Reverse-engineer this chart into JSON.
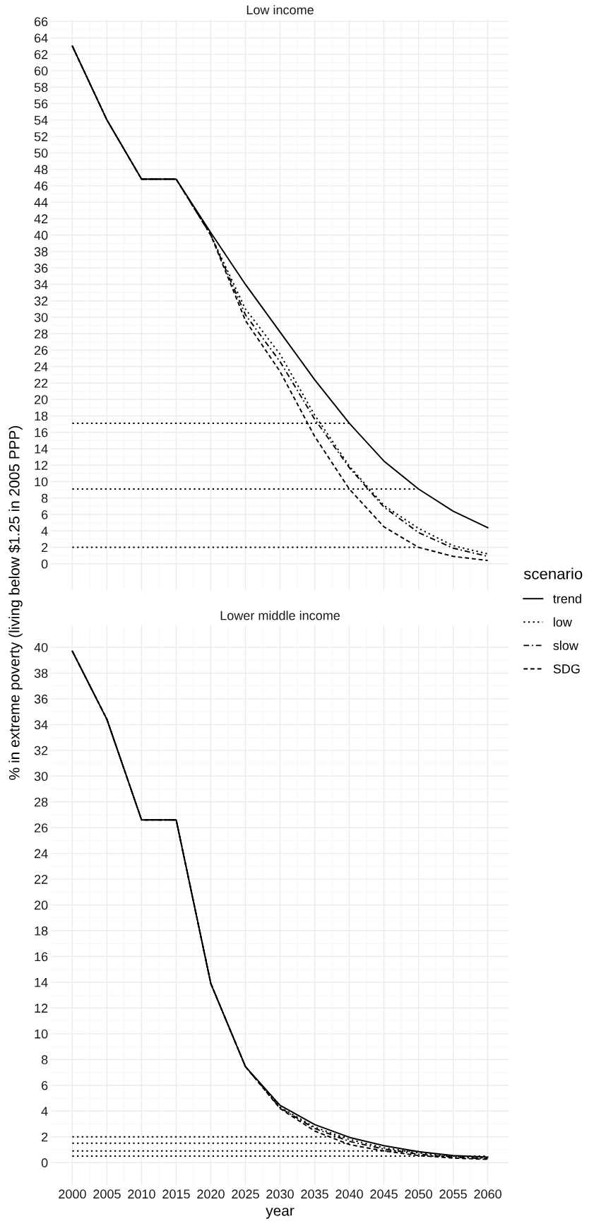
{
  "chart_data": [
    {
      "type": "line",
      "title": "Low income",
      "ylabel": "% in extreme poverty (living below $1.25 in 2005 PPP)",
      "legend_title": "scenario",
      "legend": "right",
      "grid": true,
      "tick_labels": "y",
      "x": [
        2000,
        2005,
        2010,
        2015,
        2020,
        2025,
        2030,
        2035,
        2040,
        2045,
        2050,
        2055,
        2060
      ],
      "xlim": [
        1997,
        2063
      ],
      "xticks": [
        2000,
        2005,
        2010,
        2015,
        2020,
        2025,
        2030,
        2035,
        2040,
        2045,
        2050,
        2055,
        2060
      ],
      "ylim": [
        -3.2,
        66.2
      ],
      "yticks": [
        0,
        2,
        4,
        6,
        8,
        10,
        12,
        14,
        16,
        18,
        20,
        22,
        24,
        26,
        28,
        30,
        32,
        34,
        36,
        38,
        40,
        42,
        44,
        46,
        48,
        50,
        52,
        54,
        56,
        58,
        60,
        62,
        64,
        66
      ],
      "series": [
        {
          "name": "trend",
          "color": "#000000",
          "line_style": "solid",
          "values": [
            63,
            54,
            46.8,
            46.8,
            40.3,
            34,
            28.2,
            22.4,
            17.1,
            12.5,
            9.1,
            6.4,
            4.4
          ]
        },
        {
          "name": "low",
          "color": "#000000",
          "line_style": "dotted",
          "values": [
            63,
            54,
            46.8,
            46.8,
            40,
            31,
            25.5,
            18.1,
            11.9,
            7.1,
            4.3,
            2.2,
            1.2
          ]
        },
        {
          "name": "slow",
          "color": "#000000",
          "line_style": "dashdot",
          "values": [
            63,
            54,
            46.8,
            46.8,
            40,
            30.3,
            24.6,
            17.6,
            11.7,
            6.9,
            3.8,
            1.9,
            0.9
          ]
        },
        {
          "name": "SDG",
          "color": "#000000",
          "line_style": "dashed",
          "values": [
            63,
            54,
            46.8,
            46.8,
            40,
            29.6,
            23.4,
            15.5,
            9.1,
            4.5,
            2.0,
            0.9,
            0.4
          ]
        },
        {
          "color": "#000000",
          "line_style": "dotted",
          "x": [
            2000,
            2040
          ],
          "values": [
            17.1,
            17.1
          ]
        },
        {
          "color": "#000000",
          "line_style": "dotted",
          "x": [
            2000,
            2050
          ],
          "values": [
            9.1,
            9.1
          ]
        },
        {
          "color": "#000000",
          "line_style": "dotted",
          "x": [
            2000,
            2050
          ],
          "values": [
            2.0,
            2.0
          ]
        }
      ]
    },
    {
      "type": "line",
      "title": "Lower middle income",
      "xlabel": "year",
      "grid": true,
      "x": [
        2000,
        2005,
        2010,
        2015,
        2020,
        2025,
        2030,
        2035,
        2040,
        2045,
        2050,
        2055,
        2060
      ],
      "xlim": [
        1997,
        2063
      ],
      "xticks": [
        2000,
        2005,
        2010,
        2015,
        2020,
        2025,
        2030,
        2035,
        2040,
        2045,
        2050,
        2055,
        2060
      ],
      "ylim": [
        -1.8,
        41.7
      ],
      "yticks": [
        0,
        2,
        4,
        6,
        8,
        10,
        12,
        14,
        16,
        18,
        20,
        22,
        24,
        26,
        28,
        30,
        32,
        34,
        36,
        38,
        40
      ],
      "series": [
        {
          "color": "#000000",
          "line_style": "solid",
          "values": [
            39.7,
            34.4,
            26.6,
            26.6,
            13.9,
            7.45,
            4.45,
            2.95,
            1.96,
            1.31,
            0.85,
            0.55,
            0.42
          ]
        },
        {
          "color": "#000000",
          "line_style": "dotted",
          "values": [
            39.7,
            34.4,
            26.6,
            26.6,
            13.9,
            7.45,
            4.3,
            2.75,
            1.8,
            1.15,
            0.75,
            0.5,
            0.35
          ]
        },
        {
          "color": "#000000",
          "line_style": "dashdot",
          "values": [
            39.7,
            34.4,
            26.6,
            26.6,
            13.9,
            7.45,
            4.25,
            2.65,
            1.65,
            1.05,
            0.65,
            0.42,
            0.3
          ]
        },
        {
          "color": "#000000",
          "line_style": "dashed",
          "values": [
            39.7,
            34.4,
            26.6,
            26.6,
            13.9,
            7.45,
            4.2,
            2.45,
            1.4,
            0.9,
            0.55,
            0.35,
            0.25
          ]
        },
        {
          "color": "#000000",
          "line_style": "dotted",
          "x": [
            2000,
            2040
          ],
          "values": [
            2.0,
            2.0
          ]
        },
        {
          "color": "#000000",
          "line_style": "dotted",
          "x": [
            2000,
            2040
          ],
          "values": [
            1.5,
            1.5
          ]
        },
        {
          "color": "#000000",
          "line_style": "dotted",
          "x": [
            2000,
            2050
          ],
          "values": [
            0.9,
            0.9
          ]
        },
        {
          "color": "#000000",
          "line_style": "dotted",
          "x": [
            2000,
            2060
          ],
          "values": [
            0.5,
            0.5
          ]
        }
      ]
    }
  ]
}
